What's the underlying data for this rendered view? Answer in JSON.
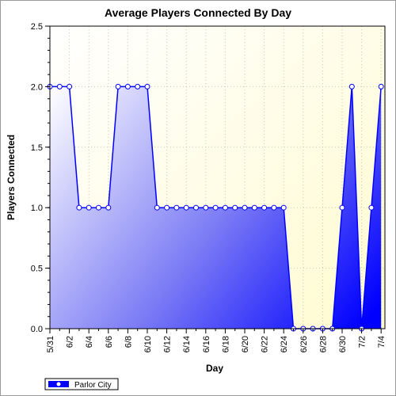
{
  "chart_data": {
    "type": "area",
    "title": "Average Players Connected By Day",
    "xlabel": "Day",
    "ylabel": "Players Connected",
    "ylim": [
      0,
      2.5
    ],
    "yticks": [
      "0.0",
      "0.5",
      "1.0",
      "1.5",
      "2.0",
      "2.5"
    ],
    "x_tick_labels": [
      "5/31",
      "6/2",
      "6/4",
      "6/6",
      "6/8",
      "6/10",
      "6/12",
      "6/14",
      "6/16",
      "6/18",
      "6/20",
      "6/22",
      "6/24",
      "6/26",
      "6/28",
      "6/30",
      "7/2",
      "7/4"
    ],
    "x": [
      "5/31",
      "6/1",
      "6/2",
      "6/3",
      "6/4",
      "6/5",
      "6/6",
      "6/7",
      "6/8",
      "6/9",
      "6/10",
      "6/11",
      "6/12",
      "6/13",
      "6/14",
      "6/15",
      "6/16",
      "6/17",
      "6/18",
      "6/19",
      "6/20",
      "6/21",
      "6/22",
      "6/23",
      "6/24",
      "6/25",
      "6/26",
      "6/27",
      "6/28",
      "6/29",
      "6/30",
      "7/1",
      "7/2",
      "7/3",
      "7/4"
    ],
    "series": [
      {
        "name": "Parlor City",
        "values": [
          2,
          2,
          2,
          1,
          1,
          1,
          1,
          2,
          2,
          2,
          2,
          1,
          1,
          1,
          1,
          1,
          1,
          1,
          1,
          1,
          1,
          1,
          1,
          1,
          1,
          0,
          0,
          0,
          0,
          0,
          1,
          2,
          0,
          1,
          2
        ]
      }
    ],
    "grid": true,
    "legend_position": "bottom-left",
    "colors": {
      "plot_background": "#fffde0",
      "line": "#0000ff",
      "fill_light": "#ffffff",
      "fill_dark": "#0000ff"
    }
  }
}
